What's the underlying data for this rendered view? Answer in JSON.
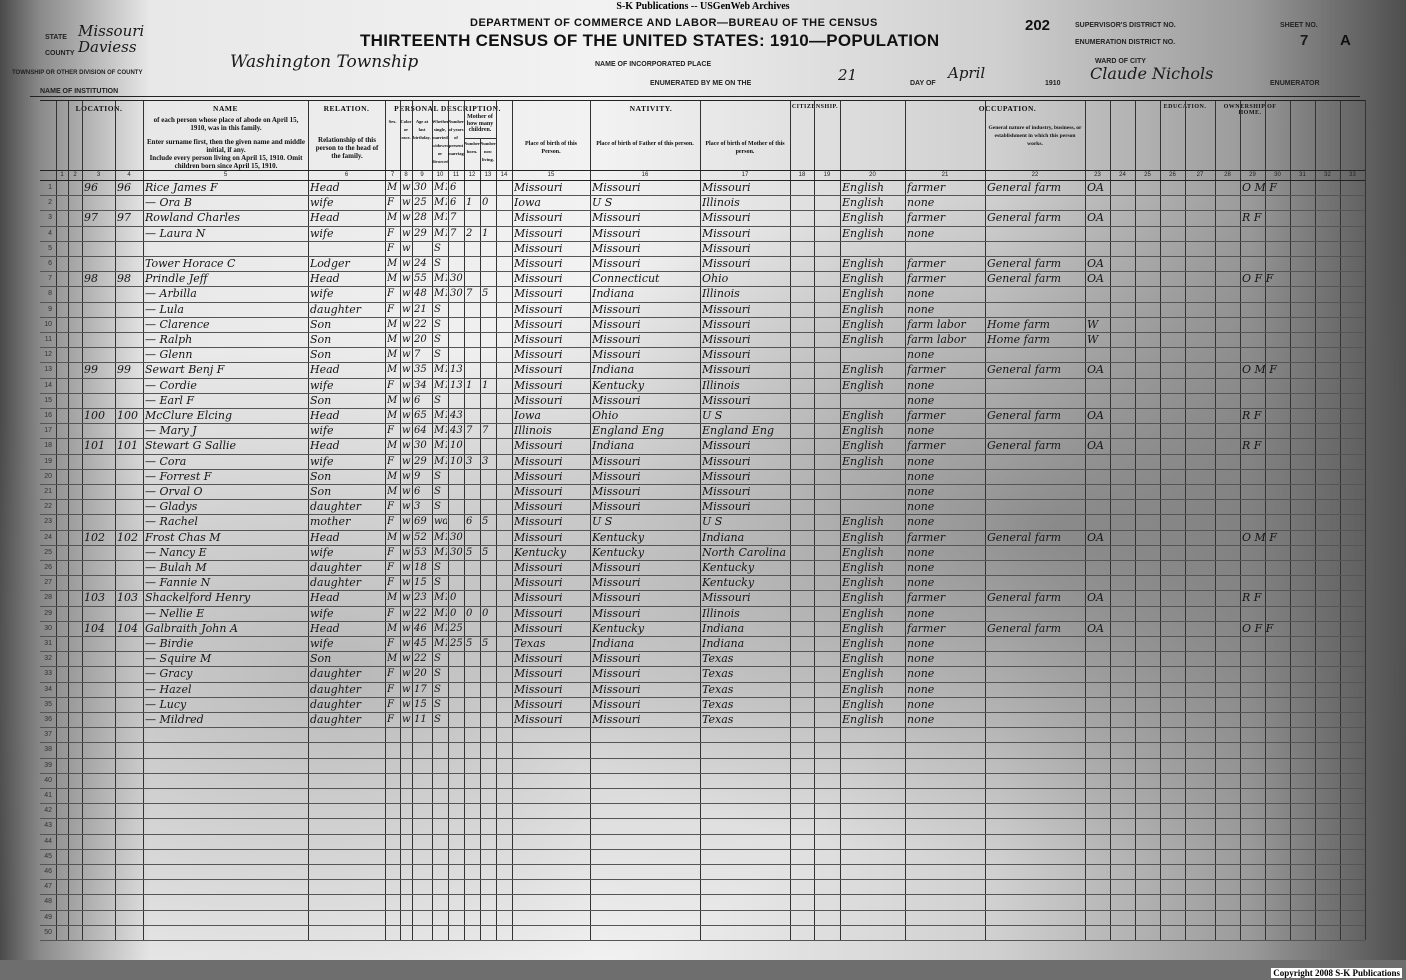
{
  "credit": "S-K Publications -- USGenWeb Archives",
  "copyright": "Copyright 2008 S-K Publications",
  "header": {
    "department": "DEPARTMENT OF COMMERCE AND LABOR—BUREAU OF THE CENSUS",
    "title": "THIRTEENTH CENSUS OF THE UNITED STATES: 1910—POPULATION",
    "page_stamp": "202",
    "state_label": "State",
    "state": "Missouri",
    "county_label": "County",
    "county": "Daviess",
    "township_label": "Township or other division of county",
    "township": "Washington Township",
    "institution_label": "Name of institution",
    "incorporated_label": "Name of incorporated place",
    "enumerated_label": "Enumerated by me on the",
    "enumerated_day": "21",
    "day_of_label": "day of",
    "enumerated_month": "April",
    "year": "1910",
    "enumerator": "Claude Nichols",
    "ward_label": "Ward of city",
    "enumerator_label": "Enumerator",
    "supervisor_label": "Supervisor's District No.",
    "enumeration_label": "Enumeration District No.",
    "sheet_label": "Sheet No.",
    "sheet_no": "7",
    "sheet_side": "A"
  },
  "column_groups": {
    "location": "LOCATION.",
    "name": "NAME",
    "relation": "RELATION.",
    "personal": "PERSONAL DESCRIPTION.",
    "nativity": "NATIVITY.",
    "citizenship": "CITIZENSHIP.",
    "occupation": "OCCUPATION.",
    "education": "EDUCATION.",
    "ownership": "OWNERSHIP OF HOME."
  },
  "column_headers": {
    "name_1": "of each person whose place of abode on April 15, 1910, was in this family.",
    "name_2": "Enter surname first, then the given name and middle initial, if any.",
    "name_3": "Include every person living on April 15, 1910. Omit children born since April 15, 1910.",
    "relation": "Relationship of this person to the head of the family.",
    "sex": "Sex.",
    "race": "Color or race.",
    "age": "Age at last birthday.",
    "marital": "Whether single, married, widowed, or divorced.",
    "years_married": "Number of years of present marriage.",
    "mother_of": "Mother of how many children.",
    "born": "Number born.",
    "living": "Number now living.",
    "birth_self": "Place of birth of this Person.",
    "birth_father": "Place of birth of Father of this person.",
    "birth_mother": "Place of birth of Mother of this person.",
    "industry": "General nature of industry, business, or establishment in which this person works."
  },
  "rows": [
    [
      "1",
      "96",
      "96",
      "Rice James F",
      "Head",
      "M",
      "w",
      "30",
      "M1",
      "6",
      "",
      "",
      "Missouri",
      "Missouri",
      "Missouri",
      "English",
      "farmer",
      "General farm",
      "OA",
      "O M F"
    ],
    [
      "2",
      "",
      "",
      "— Ora B",
      "wife",
      "F",
      "w",
      "25",
      "M1",
      "6",
      "1",
      "0",
      "Iowa",
      "U S",
      "Illinois",
      "English",
      "none",
      "",
      "",
      ""
    ],
    [
      "3",
      "97",
      "97",
      "Rowland Charles",
      "Head",
      "M",
      "w",
      "28",
      "M1",
      "7",
      "",
      "",
      "Missouri",
      "Missouri",
      "Missouri",
      "English",
      "farmer",
      "General farm",
      "OA",
      "R F"
    ],
    [
      "4",
      "",
      "",
      "— Laura N",
      "wife",
      "F",
      "w",
      "29",
      "M1",
      "7",
      "2",
      "1",
      "Missouri",
      "Missouri",
      "Missouri",
      "English",
      "none",
      "",
      "",
      ""
    ],
    [
      "5",
      "",
      "",
      "",
      "",
      "F",
      "w",
      "",
      "S",
      "",
      "",
      "",
      "Missouri",
      "Missouri",
      "Missouri",
      "",
      "",
      "",
      "",
      ""
    ],
    [
      "6",
      "",
      "",
      "Tower Horace C",
      "Lodger",
      "M",
      "w",
      "24",
      "S",
      "",
      "",
      "",
      "Missouri",
      "Missouri",
      "Missouri",
      "English",
      "farmer",
      "General farm",
      "OA",
      ""
    ],
    [
      "7",
      "98",
      "98",
      "Prindle Jeff",
      "Head",
      "M",
      "w",
      "55",
      "M1",
      "30",
      "",
      "",
      "Missouri",
      "Connecticut",
      "Ohio",
      "English",
      "farmer",
      "General farm",
      "OA",
      "O F F"
    ],
    [
      "8",
      "",
      "",
      "— Arbilla",
      "wife",
      "F",
      "w",
      "48",
      "M1",
      "30",
      "7",
      "5",
      "Missouri",
      "Indiana",
      "Illinois",
      "English",
      "none",
      "",
      "",
      ""
    ],
    [
      "9",
      "",
      "",
      "— Lula",
      "daughter",
      "F",
      "w",
      "21",
      "S",
      "",
      "",
      "",
      "Missouri",
      "Missouri",
      "Missouri",
      "English",
      "none",
      "",
      "",
      ""
    ],
    [
      "10",
      "",
      "",
      "— Clarence",
      "Son",
      "M",
      "w",
      "22",
      "S",
      "",
      "",
      "",
      "Missouri",
      "Missouri",
      "Missouri",
      "English",
      "farm labor",
      "Home farm",
      "W",
      ""
    ],
    [
      "11",
      "",
      "",
      "— Ralph",
      "Son",
      "M",
      "w",
      "20",
      "S",
      "",
      "",
      "",
      "Missouri",
      "Missouri",
      "Missouri",
      "English",
      "farm labor",
      "Home farm",
      "W",
      ""
    ],
    [
      "12",
      "",
      "",
      "— Glenn",
      "Son",
      "M",
      "w",
      "7",
      "S",
      "",
      "",
      "",
      "Missouri",
      "Missouri",
      "Missouri",
      "",
      "none",
      "",
      "",
      ""
    ],
    [
      "13",
      "99",
      "99",
      "Sewart Benj F",
      "Head",
      "M",
      "w",
      "35",
      "M1",
      "13",
      "",
      "",
      "Missouri",
      "Indiana",
      "Missouri",
      "English",
      "farmer",
      "General farm",
      "OA",
      "O M F"
    ],
    [
      "14",
      "",
      "",
      "— Cordie",
      "wife",
      "F",
      "w",
      "34",
      "M1",
      "13",
      "1",
      "1",
      "Missouri",
      "Kentucky",
      "Illinois",
      "English",
      "none",
      "",
      "",
      ""
    ],
    [
      "15",
      "",
      "",
      "— Earl F",
      "Son",
      "M",
      "w",
      "6",
      "S",
      "",
      "",
      "",
      "Missouri",
      "Missouri",
      "Missouri",
      "",
      "none",
      "",
      "",
      ""
    ],
    [
      "16",
      "100",
      "100",
      "McClure Elcing",
      "Head",
      "M",
      "w",
      "65",
      "M1",
      "43",
      "",
      "",
      "Iowa",
      "Ohio",
      "U S",
      "English",
      "farmer",
      "General farm",
      "OA",
      "R F"
    ],
    [
      "17",
      "",
      "",
      "— Mary J",
      "wife",
      "F",
      "w",
      "64",
      "M1",
      "43",
      "7",
      "7",
      "Illinois",
      "England Eng",
      "England Eng",
      "English",
      "none",
      "",
      "",
      ""
    ],
    [
      "18",
      "101",
      "101",
      "Stewart G Sallie",
      "Head",
      "M",
      "w",
      "30",
      "M1",
      "10",
      "",
      "",
      "Missouri",
      "Indiana",
      "Missouri",
      "English",
      "farmer",
      "General farm",
      "OA",
      "R F"
    ],
    [
      "19",
      "",
      "",
      "— Cora",
      "wife",
      "F",
      "w",
      "29",
      "M1",
      "10",
      "3",
      "3",
      "Missouri",
      "Missouri",
      "Missouri",
      "English",
      "none",
      "",
      "",
      ""
    ],
    [
      "20",
      "",
      "",
      "— Forrest F",
      "Son",
      "M",
      "w",
      "9",
      "S",
      "",
      "",
      "",
      "Missouri",
      "Missouri",
      "Missouri",
      "",
      "none",
      "",
      "",
      ""
    ],
    [
      "21",
      "",
      "",
      "— Orval O",
      "Son",
      "M",
      "w",
      "6",
      "S",
      "",
      "",
      "",
      "Missouri",
      "Missouri",
      "Missouri",
      "",
      "none",
      "",
      "",
      ""
    ],
    [
      "22",
      "",
      "",
      "— Gladys",
      "daughter",
      "F",
      "w",
      "3",
      "S",
      "",
      "",
      "",
      "Missouri",
      "Missouri",
      "Missouri",
      "",
      "none",
      "",
      "",
      ""
    ],
    [
      "23",
      "",
      "",
      "— Rachel",
      "mother",
      "F",
      "w",
      "69",
      "wd",
      "",
      "6",
      "5",
      "Missouri",
      "U S",
      "U S",
      "English",
      "none",
      "",
      "",
      ""
    ],
    [
      "24",
      "102",
      "102",
      "Frost Chas M",
      "Head",
      "M",
      "w",
      "52",
      "M1",
      "30",
      "",
      "",
      "Missouri",
      "Kentucky",
      "Indiana",
      "English",
      "farmer",
      "General farm",
      "OA",
      "O M F"
    ],
    [
      "25",
      "",
      "",
      "— Nancy E",
      "wife",
      "F",
      "w",
      "53",
      "M1",
      "30",
      "5",
      "5",
      "Kentucky",
      "Kentucky",
      "North Carolina",
      "English",
      "none",
      "",
      "",
      ""
    ],
    [
      "26",
      "",
      "",
      "— Bulah M",
      "daughter",
      "F",
      "w",
      "18",
      "S",
      "",
      "",
      "",
      "Missouri",
      "Missouri",
      "Kentucky",
      "English",
      "none",
      "",
      "",
      ""
    ],
    [
      "27",
      "",
      "",
      "— Fannie N",
      "daughter",
      "F",
      "w",
      "15",
      "S",
      "",
      "",
      "",
      "Missouri",
      "Missouri",
      "Kentucky",
      "English",
      "none",
      "",
      "",
      ""
    ],
    [
      "28",
      "103",
      "103",
      "Shackelford Henry",
      "Head",
      "M",
      "w",
      "23",
      "M1",
      "0",
      "",
      "",
      "Missouri",
      "Missouri",
      "Missouri",
      "English",
      "farmer",
      "General farm",
      "OA",
      "R F"
    ],
    [
      "29",
      "",
      "",
      "— Nellie E",
      "wife",
      "F",
      "w",
      "22",
      "M1",
      "0",
      "0",
      "0",
      "Missouri",
      "Missouri",
      "Illinois",
      "English",
      "none",
      "",
      "",
      ""
    ],
    [
      "30",
      "104",
      "104",
      "Galbraith John A",
      "Head",
      "M",
      "w",
      "46",
      "M1",
      "25",
      "",
      "",
      "Missouri",
      "Kentucky",
      "Indiana",
      "English",
      "farmer",
      "General farm",
      "OA",
      "O F F"
    ],
    [
      "31",
      "",
      "",
      "— Birdie",
      "wife",
      "F",
      "w",
      "45",
      "M1",
      "25",
      "5",
      "5",
      "Texas",
      "Indiana",
      "Indiana",
      "English",
      "none",
      "",
      "",
      ""
    ],
    [
      "32",
      "",
      "",
      "— Squire M",
      "Son",
      "M",
      "w",
      "22",
      "S",
      "",
      "",
      "",
      "Missouri",
      "Missouri",
      "Texas",
      "English",
      "none",
      "",
      "",
      ""
    ],
    [
      "33",
      "",
      "",
      "— Gracy",
      "daughter",
      "F",
      "w",
      "20",
      "S",
      "",
      "",
      "",
      "Missouri",
      "Missouri",
      "Texas",
      "English",
      "none",
      "",
      "",
      ""
    ],
    [
      "34",
      "",
      "",
      "— Hazel",
      "daughter",
      "F",
      "w",
      "17",
      "S",
      "",
      "",
      "",
      "Missouri",
      "Missouri",
      "Texas",
      "English",
      "none",
      "",
      "",
      ""
    ],
    [
      "35",
      "",
      "",
      "— Lucy",
      "daughter",
      "F",
      "w",
      "15",
      "S",
      "",
      "",
      "",
      "Missouri",
      "Missouri",
      "Texas",
      "English",
      "none",
      "",
      "",
      ""
    ],
    [
      "36",
      "",
      "",
      "— Mildred",
      "daughter",
      "F",
      "w",
      "11",
      "S",
      "",
      "",
      "",
      "Missouri",
      "Missouri",
      "Texas",
      "English",
      "none",
      "",
      "",
      ""
    ]
  ],
  "blank_line_numbers": [
    "37",
    "38",
    "39",
    "40",
    "41",
    "42",
    "43",
    "44",
    "45",
    "46",
    "47",
    "48",
    "49",
    "50"
  ]
}
